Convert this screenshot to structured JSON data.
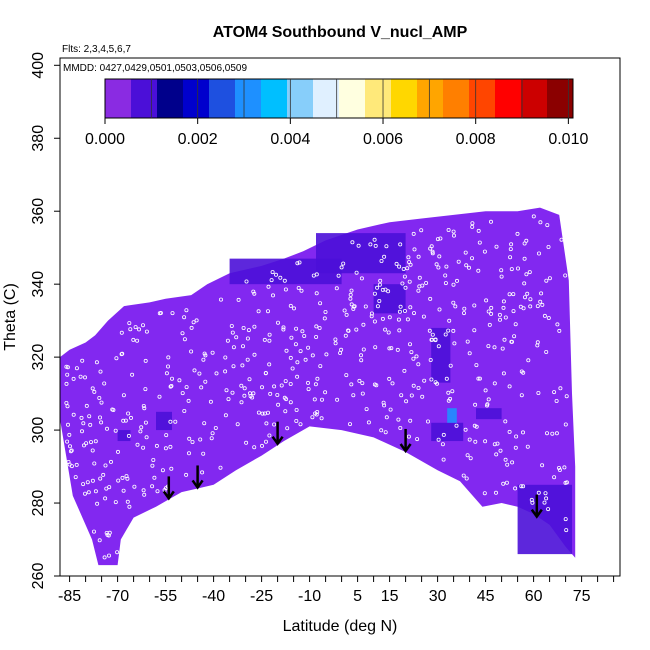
{
  "chart_data": {
    "type": "heatmap",
    "title": "ATOM4 Southbound V_nucl_AMP",
    "flights_label": "Flts: 2,3,4,5,6,7",
    "dates_label": "MMDD: 0427,0429,0501,0503,0506,0509",
    "xlabel": "Latitude (deg N)",
    "ylabel": "Theta (C)",
    "xlim": [
      -88,
      87
    ],
    "ylim": [
      260,
      402
    ],
    "x_ticks": [
      -85,
      -70,
      -55,
      -40,
      -25,
      -10,
      5,
      15,
      30,
      45,
      60,
      75
    ],
    "x_minor_step": 5,
    "y_ticks": [
      260,
      280,
      300,
      320,
      340,
      360,
      380,
      400
    ],
    "colorbar": {
      "min": 0,
      "max": 0.0101,
      "ticks": [
        "0.000",
        "0.002",
        "0.004",
        "0.006",
        "0.008",
        "0.010"
      ],
      "tick_values": [
        0,
        0.002,
        0.004,
        0.006,
        0.008,
        0.01
      ],
      "colors": [
        "#8a2be2",
        "#4b0fd8",
        "#00008b",
        "#0000cd",
        "#1e50e0",
        "#1e90ff",
        "#00bfff",
        "#87cefa",
        "#e0f0ff",
        "#ffffe0",
        "#ffe97a",
        "#ffd700",
        "#ffa500",
        "#ff7f00",
        "#ff4500",
        "#ff0000",
        "#cc0000",
        "#8b0000"
      ]
    },
    "background_color": "#8228f0",
    "field_top": [
      [
        -88,
        320
      ],
      [
        -85,
        322
      ],
      [
        -80,
        324
      ],
      [
        -77,
        326
      ],
      [
        -73,
        330
      ],
      [
        -68,
        334
      ],
      [
        -60,
        335
      ],
      [
        -55,
        336
      ],
      [
        -47,
        337
      ],
      [
        -42,
        340
      ],
      [
        -35,
        343
      ],
      [
        -25,
        345
      ],
      [
        -18,
        347
      ],
      [
        -12,
        349
      ],
      [
        -5,
        352
      ],
      [
        5,
        355
      ],
      [
        15,
        357
      ],
      [
        25,
        358
      ],
      [
        35,
        359
      ],
      [
        45,
        360
      ],
      [
        55,
        360
      ],
      [
        62,
        361
      ],
      [
        68,
        359
      ],
      [
        71,
        341
      ],
      [
        72,
        310
      ],
      [
        73,
        290
      ]
    ],
    "field_bottom": [
      [
        -88,
        303
      ],
      [
        -84,
        282
      ],
      [
        -78,
        270
      ],
      [
        -76,
        263
      ],
      [
        -70,
        263
      ],
      [
        -69,
        270
      ],
      [
        -65,
        276
      ],
      [
        -58,
        279
      ],
      [
        -54,
        281
      ],
      [
        -50,
        283
      ],
      [
        -45,
        284
      ],
      [
        -40,
        285
      ],
      [
        -33,
        289
      ],
      [
        -25,
        293
      ],
      [
        -18,
        297
      ],
      [
        -10,
        301
      ],
      [
        0,
        300
      ],
      [
        10,
        298
      ],
      [
        20,
        294
      ],
      [
        30,
        289
      ],
      [
        37,
        286
      ],
      [
        44,
        279
      ],
      [
        50,
        280
      ],
      [
        55,
        279
      ],
      [
        60,
        277
      ],
      [
        65,
        274
      ],
      [
        70,
        268
      ],
      [
        73,
        265
      ]
    ],
    "arrows": [
      {
        "lat": -54,
        "theta": 281
      },
      {
        "lat": -45,
        "theta": 284
      },
      {
        "lat": -20,
        "theta": 296
      },
      {
        "lat": 20,
        "theta": 294
      },
      {
        "lat": 61,
        "theta": 276
      }
    ],
    "high_patches": [
      {
        "lat": [
          -35,
          0
        ],
        "theta": [
          340,
          347
        ],
        "value": 0.0009
      },
      {
        "lat": [
          -8,
          20
        ],
        "theta": [
          343,
          354
        ],
        "value": 0.0009
      },
      {
        "lat": [
          10,
          20
        ],
        "theta": [
          332,
          340
        ],
        "value": 0.0011
      },
      {
        "lat": [
          28,
          34
        ],
        "theta": [
          313,
          328
        ],
        "value": 0.0011
      },
      {
        "lat": [
          28,
          38
        ],
        "theta": [
          297,
          302
        ],
        "value": 0.0009
      },
      {
        "lat": [
          33,
          36
        ],
        "theta": [
          302,
          306
        ],
        "value": 0.0032
      },
      {
        "lat": [
          55,
          72
        ],
        "theta": [
          266,
          285
        ],
        "value": 0.0011
      },
      {
        "lat": [
          -58,
          -53
        ],
        "theta": [
          300,
          305
        ],
        "value": 0.001
      },
      {
        "lat": [
          42,
          50
        ],
        "theta": [
          303,
          306
        ],
        "value": 0.0009
      },
      {
        "lat": [
          -70,
          -66
        ],
        "theta": [
          297,
          300
        ],
        "value": 0.001
      }
    ]
  }
}
